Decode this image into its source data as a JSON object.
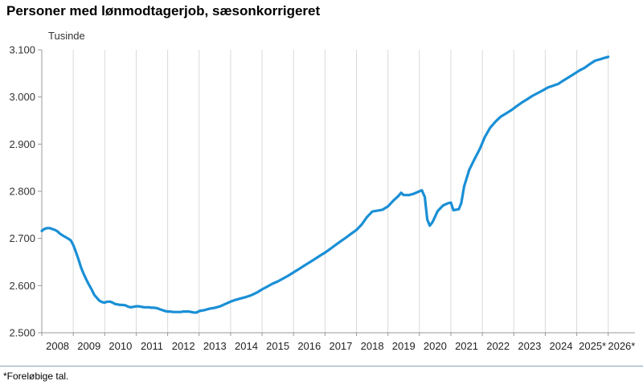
{
  "chart_data": {
    "type": "line",
    "title": "Personer med lønmodtagerjob, sæsonkorrigeret",
    "unit_label": "Tusinde",
    "ylim": [
      2500,
      3100
    ],
    "yticks": [
      {
        "value": 2500,
        "label": "2.500"
      },
      {
        "value": 2600,
        "label": "2.600"
      },
      {
        "value": 2700,
        "label": "2.700"
      },
      {
        "value": 2800,
        "label": "2.800"
      },
      {
        "value": 2900,
        "label": "2.900"
      },
      {
        "value": 3000,
        "label": "3.000"
      },
      {
        "value": 3100,
        "label": "3.100"
      }
    ],
    "xlim": [
      2008,
      2026.85
    ],
    "xticks": [
      "2008",
      "2009",
      "2010",
      "2011",
      "2012",
      "2013",
      "2014",
      "2015",
      "2016",
      "2017",
      "2018",
      "2019",
      "2020",
      "2021",
      "2022",
      "2023",
      "2024",
      "2025*",
      "2026*"
    ],
    "grid": "vertical",
    "line_color": "#1a8fd6",
    "series": [
      {
        "values": [
          [
            2008.0,
            2716
          ],
          [
            2008.08,
            2720
          ],
          [
            2008.17,
            2722
          ],
          [
            2008.25,
            2722
          ],
          [
            2008.33,
            2720
          ],
          [
            2008.42,
            2718
          ],
          [
            2008.5,
            2715
          ],
          [
            2008.58,
            2710
          ],
          [
            2008.67,
            2706
          ],
          [
            2008.75,
            2703
          ],
          [
            2008.83,
            2700
          ],
          [
            2008.92,
            2696
          ],
          [
            2009.0,
            2686
          ],
          [
            2009.08,
            2672
          ],
          [
            2009.17,
            2655
          ],
          [
            2009.25,
            2638
          ],
          [
            2009.33,
            2625
          ],
          [
            2009.42,
            2612
          ],
          [
            2009.5,
            2602
          ],
          [
            2009.58,
            2592
          ],
          [
            2009.67,
            2580
          ],
          [
            2009.75,
            2574
          ],
          [
            2009.83,
            2568
          ],
          [
            2009.92,
            2565
          ],
          [
            2010.0,
            2564
          ],
          [
            2010.08,
            2566
          ],
          [
            2010.17,
            2566
          ],
          [
            2010.25,
            2564
          ],
          [
            2010.33,
            2561
          ],
          [
            2010.42,
            2560
          ],
          [
            2010.5,
            2559
          ],
          [
            2010.58,
            2559
          ],
          [
            2010.67,
            2558
          ],
          [
            2010.75,
            2555
          ],
          [
            2010.83,
            2554
          ],
          [
            2010.92,
            2555
          ],
          [
            2011.0,
            2556
          ],
          [
            2011.08,
            2556
          ],
          [
            2011.17,
            2555
          ],
          [
            2011.25,
            2554
          ],
          [
            2011.33,
            2554
          ],
          [
            2011.42,
            2554
          ],
          [
            2011.5,
            2553
          ],
          [
            2011.58,
            2553
          ],
          [
            2011.67,
            2552
          ],
          [
            2011.75,
            2550
          ],
          [
            2011.83,
            2548
          ],
          [
            2011.92,
            2546
          ],
          [
            2012.0,
            2545
          ],
          [
            2012.08,
            2545
          ],
          [
            2012.17,
            2544
          ],
          [
            2012.25,
            2544
          ],
          [
            2012.33,
            2544
          ],
          [
            2012.42,
            2544
          ],
          [
            2012.5,
            2545
          ],
          [
            2012.58,
            2545
          ],
          [
            2012.67,
            2545
          ],
          [
            2012.75,
            2544
          ],
          [
            2012.83,
            2543
          ],
          [
            2012.92,
            2543
          ],
          [
            2013.0,
            2546
          ],
          [
            2013.17,
            2548
          ],
          [
            2013.33,
            2551
          ],
          [
            2013.5,
            2553
          ],
          [
            2013.67,
            2556
          ],
          [
            2013.83,
            2561
          ],
          [
            2014.0,
            2566
          ],
          [
            2014.17,
            2570
          ],
          [
            2014.33,
            2573
          ],
          [
            2014.5,
            2576
          ],
          [
            2014.67,
            2580
          ],
          [
            2014.83,
            2585
          ],
          [
            2015.0,
            2592
          ],
          [
            2015.17,
            2598
          ],
          [
            2015.33,
            2604
          ],
          [
            2015.5,
            2609
          ],
          [
            2015.67,
            2615
          ],
          [
            2015.83,
            2621
          ],
          [
            2016.0,
            2628
          ],
          [
            2016.17,
            2635
          ],
          [
            2016.33,
            2642
          ],
          [
            2016.5,
            2649
          ],
          [
            2016.67,
            2656
          ],
          [
            2016.83,
            2663
          ],
          [
            2017.0,
            2670
          ],
          [
            2017.17,
            2678
          ],
          [
            2017.33,
            2686
          ],
          [
            2017.5,
            2694
          ],
          [
            2017.67,
            2702
          ],
          [
            2017.83,
            2710
          ],
          [
            2018.0,
            2718
          ],
          [
            2018.17,
            2730
          ],
          [
            2018.33,
            2745
          ],
          [
            2018.5,
            2757
          ],
          [
            2018.67,
            2759
          ],
          [
            2018.83,
            2761
          ],
          [
            2019.0,
            2768
          ],
          [
            2019.17,
            2780
          ],
          [
            2019.33,
            2790
          ],
          [
            2019.42,
            2797
          ],
          [
            2019.5,
            2792
          ],
          [
            2019.67,
            2792
          ],
          [
            2019.83,
            2795
          ],
          [
            2020.0,
            2800
          ],
          [
            2020.08,
            2802
          ],
          [
            2020.17,
            2788
          ],
          [
            2020.25,
            2740
          ],
          [
            2020.33,
            2727
          ],
          [
            2020.42,
            2735
          ],
          [
            2020.58,
            2758
          ],
          [
            2020.75,
            2770
          ],
          [
            2020.92,
            2775
          ],
          [
            2021.0,
            2776
          ],
          [
            2021.08,
            2760
          ],
          [
            2021.25,
            2762
          ],
          [
            2021.33,
            2775
          ],
          [
            2021.42,
            2810
          ],
          [
            2021.58,
            2845
          ],
          [
            2021.75,
            2868
          ],
          [
            2021.92,
            2890
          ],
          [
            2022.08,
            2915
          ],
          [
            2022.25,
            2935
          ],
          [
            2022.42,
            2948
          ],
          [
            2022.58,
            2958
          ],
          [
            2022.75,
            2965
          ],
          [
            2022.92,
            2972
          ],
          [
            2023.08,
            2980
          ],
          [
            2023.25,
            2988
          ],
          [
            2023.42,
            2995
          ],
          [
            2023.58,
            3002
          ],
          [
            2023.75,
            3008
          ],
          [
            2023.92,
            3014
          ],
          [
            2024.08,
            3020
          ],
          [
            2024.25,
            3024
          ],
          [
            2024.42,
            3028
          ],
          [
            2024.58,
            3035
          ],
          [
            2024.75,
            3042
          ],
          [
            2024.92,
            3049
          ],
          [
            2025.08,
            3056
          ],
          [
            2025.25,
            3062
          ],
          [
            2025.42,
            3070
          ],
          [
            2025.58,
            3077
          ],
          [
            2025.75,
            3080
          ],
          [
            2025.83,
            3082
          ],
          [
            2026.0,
            3085
          ]
        ]
      }
    ]
  },
  "footnote": "*Foreløbige tal."
}
